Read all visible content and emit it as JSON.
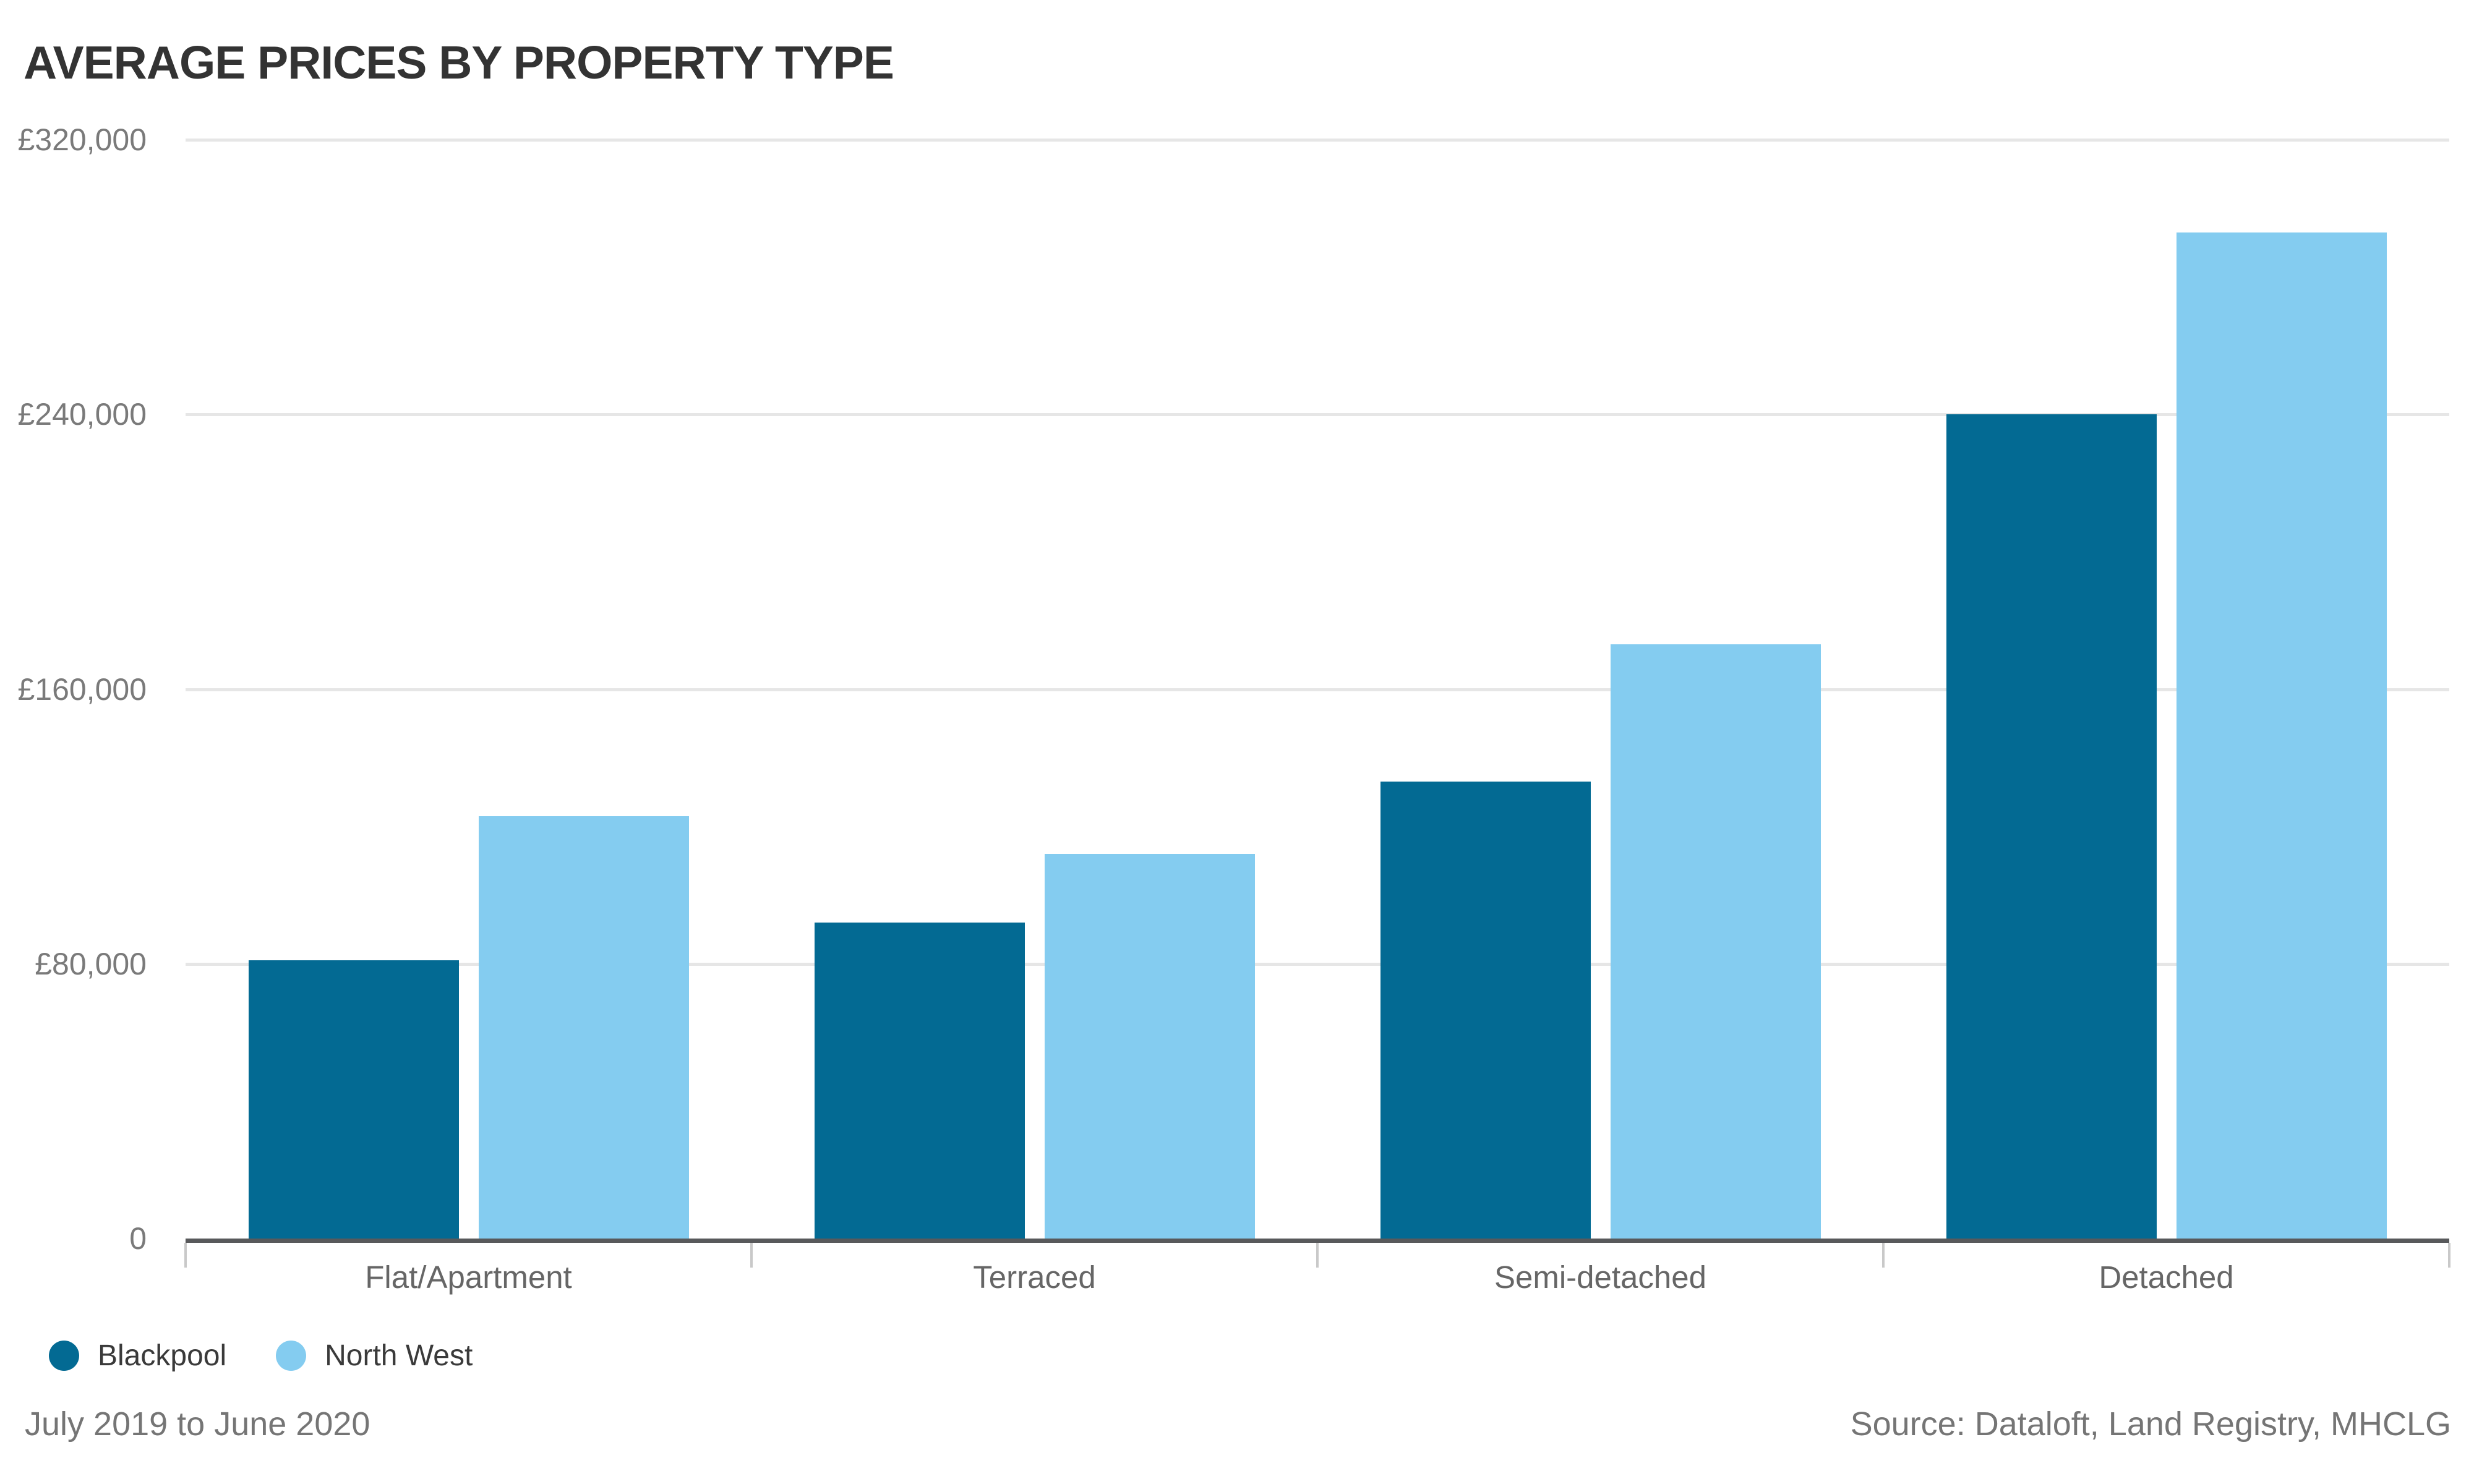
{
  "chart_data": {
    "type": "bar",
    "title": "AVERAGE PRICES BY PROPERTY TYPE",
    "categories": [
      "Flat/Apartment",
      "Terraced",
      "Semi-detached",
      "Detached"
    ],
    "series": [
      {
        "name": "Blackpool",
        "color": "#036a93",
        "values": [
          81000,
          92000,
          133000,
          240000
        ]
      },
      {
        "name": "North West",
        "color": "#84ccf0",
        "values": [
          123000,
          112000,
          173000,
          293000
        ]
      }
    ],
    "y_axis": {
      "min": 0,
      "max": 320000,
      "tick_step": 80000,
      "ticks": [
        {
          "value": 320000,
          "label": "£320,000"
        },
        {
          "value": 240000,
          "label": "£240,000"
        },
        {
          "value": 160000,
          "label": "£160,000"
        },
        {
          "value": 80000,
          "label": "£80,000"
        },
        {
          "value": 0,
          "label": "0"
        }
      ]
    },
    "grid": "horizontal",
    "legend_position": "bottom-left",
    "footnote": "July 2019 to June 2020",
    "source": "Source: Dataloft, Land Registry, MHCLG"
  }
}
